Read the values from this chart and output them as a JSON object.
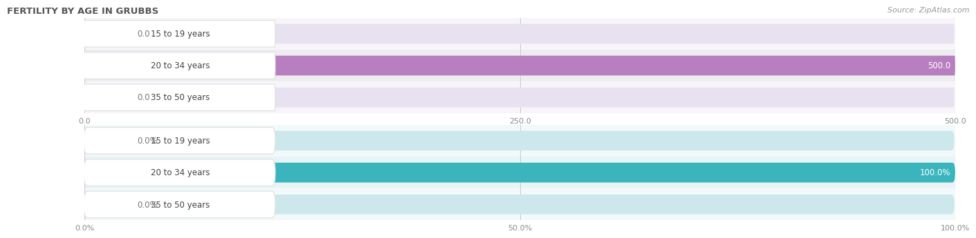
{
  "title": "FERTILITY BY AGE IN GRUBBS",
  "source": "Source: ZipAtlas.com",
  "top_chart": {
    "categories": [
      "15 to 19 years",
      "20 to 34 years",
      "35 to 50 years"
    ],
    "values": [
      0.0,
      500.0,
      0.0
    ],
    "bar_color": "#b87fc0",
    "xlim": [
      0,
      500
    ],
    "xticks": [
      0.0,
      250.0,
      500.0
    ],
    "xticklabels": [
      "0.0",
      "250.0",
      "500.0"
    ]
  },
  "bottom_chart": {
    "categories": [
      "15 to 19 years",
      "20 to 34 years",
      "35 to 50 years"
    ],
    "values": [
      0.0,
      100.0,
      0.0
    ],
    "bar_color": "#3ab5be",
    "xlim": [
      0,
      100
    ],
    "xticks": [
      0.0,
      50.0,
      100.0
    ],
    "xticklabels": [
      "0.0%",
      "50.0%",
      "100.0%"
    ]
  },
  "title_color": "#555555",
  "source_color": "#999999",
  "bar_bg_color_top": "#e8e2f0",
  "bar_bg_color_bottom": "#cde8ec",
  "bar_fg_light_top": "#c9a8d8",
  "bar_fg_light_bottom": "#7dcdd6",
  "row_bg_odd": "#f5f5f7",
  "row_bg_even": "#ebebee",
  "label_box_color": "#ffffff"
}
